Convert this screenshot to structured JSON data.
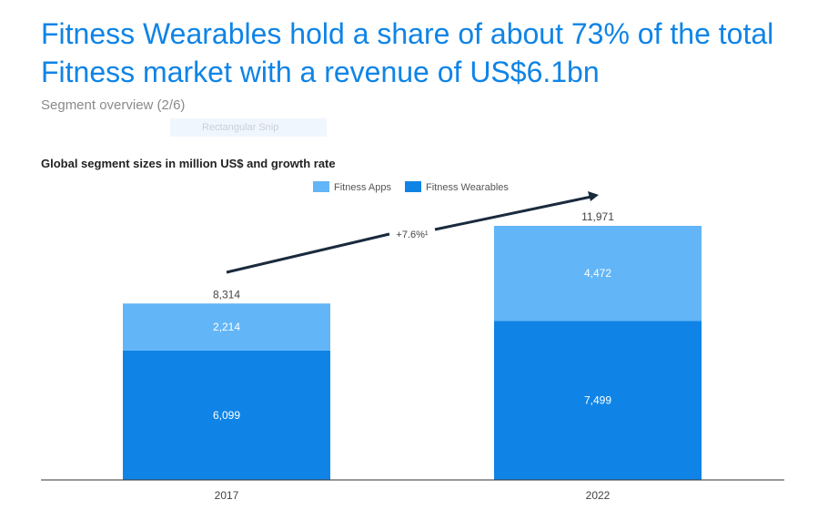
{
  "header": {
    "title": "Fitness Wearables hold a share of about 73% of the total Fitness market with a revenue of US$6.1bn",
    "subtitle": "Segment overview (2/6)",
    "overlay_label": "Rectangular Snip"
  },
  "chart_data": {
    "type": "bar",
    "stacked": true,
    "title": "Global segment sizes in million US$ and growth rate",
    "categories": [
      "2017",
      "2022"
    ],
    "series": [
      {
        "name": "Fitness Wearables",
        "values": [
          6099,
          7499
        ],
        "color": "#0f84e6"
      },
      {
        "name": "Fitness Apps",
        "values": [
          2214,
          4472
        ],
        "color": "#62b5f7"
      }
    ],
    "totals": [
      "8,314",
      "11,971"
    ],
    "value_labels": [
      [
        "6,099",
        "7,499"
      ],
      [
        "2,214",
        "4,472"
      ]
    ],
    "growth_annotation": "+7.6%¹",
    "legend_placement": "top",
    "grid": false
  }
}
